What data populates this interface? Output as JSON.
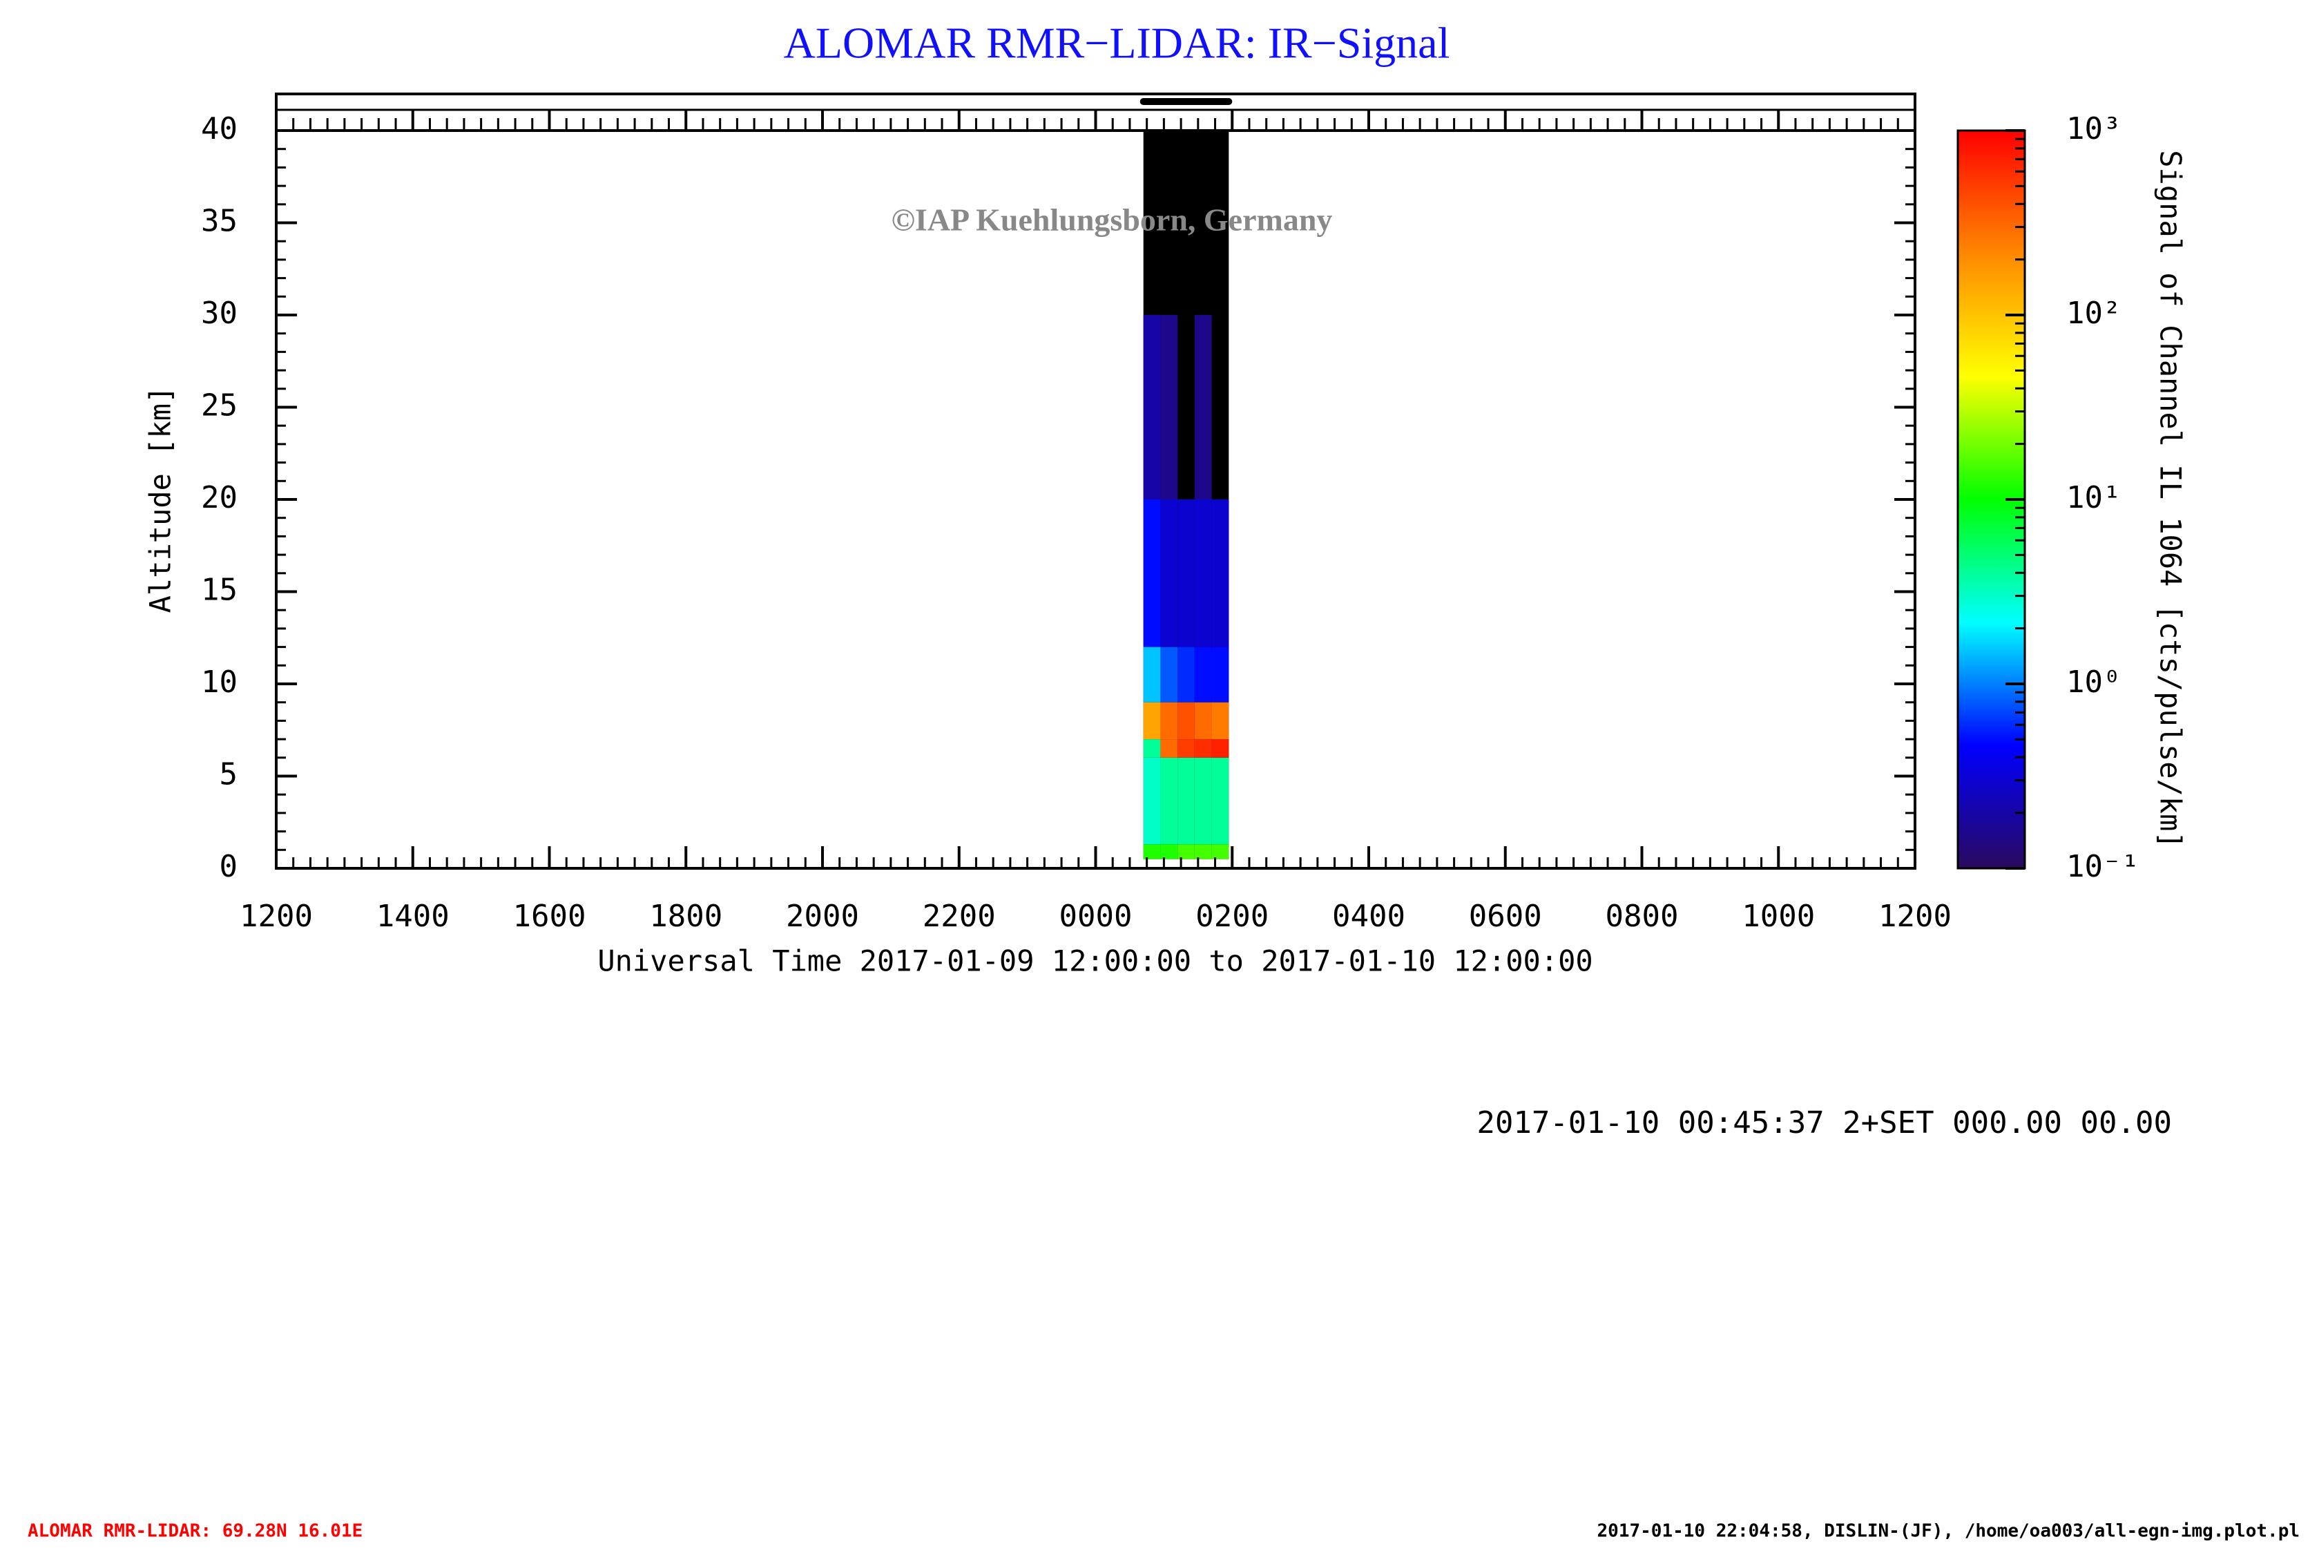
{
  "chart_data": {
    "type": "heatmap",
    "title": "ALOMAR RMR−LIDAR: IR−Signal",
    "watermark": "©IAP Kuehlungsborn, Germany",
    "ylabel": "Altitude [km]",
    "xlabel": "Universal Time 2017-01-09 12:00:00 to 2017-01-10 12:00:00",
    "xlim": [
      0,
      24
    ],
    "ylim": [
      0,
      40
    ],
    "xticks": [
      {
        "value": 0,
        "label": "1200"
      },
      {
        "value": 2,
        "label": "1400"
      },
      {
        "value": 4,
        "label": "1600"
      },
      {
        "value": 6,
        "label": "1800"
      },
      {
        "value": 8,
        "label": "2000"
      },
      {
        "value": 10,
        "label": "2200"
      },
      {
        "value": 12,
        "label": "0000"
      },
      {
        "value": 14,
        "label": "0200"
      },
      {
        "value": 16,
        "label": "0400"
      },
      {
        "value": 18,
        "label": "0600"
      },
      {
        "value": 20,
        "label": "0800"
      },
      {
        "value": 22,
        "label": "1000"
      },
      {
        "value": 24,
        "label": "1200"
      }
    ],
    "yticks": [
      0,
      5,
      10,
      15,
      20,
      25,
      30,
      35,
      40
    ],
    "x_bins": [
      12.7,
      12.95,
      13.2,
      13.45,
      13.7,
      13.95
    ],
    "y_bins": [
      0.5,
      1.3,
      6,
      7,
      9,
      12,
      20,
      30,
      40
    ],
    "values": [
      [
        12,
        12,
        15,
        15,
        15
      ],
      [
        3,
        4,
        4,
        4,
        4
      ],
      [
        4,
        300,
        500,
        600,
        700
      ],
      [
        150,
        300,
        400,
        300,
        250
      ],
      [
        1.5,
        0.8,
        0.6,
        0.5,
        0.5
      ],
      [
        0.5,
        0.3,
        0.3,
        0.3,
        0.3
      ],
      [
        0.2,
        0.15,
        null,
        0.15,
        null
      ],
      [
        null,
        null,
        null,
        null,
        null
      ]
    ],
    "missing_color": "#000000",
    "colormap": [
      "#2a0a5e",
      "#0000ff",
      "#00ffff",
      "#00ff00",
      "#ffff00",
      "#ff8800",
      "#ff0000"
    ],
    "colorbar": {
      "label": "Signal of Channel IL 1064 [cts/pulse/km]",
      "scale": "log",
      "lim": [
        0.1,
        1000
      ],
      "ticks": [
        {
          "value": 0.1,
          "label": "10⁻¹"
        },
        {
          "value": 1,
          "label": "10⁰"
        },
        {
          "value": 10,
          "label": "10¹"
        },
        {
          "value": 100,
          "label": "10²"
        },
        {
          "value": 1000,
          "label": "10³"
        }
      ]
    },
    "info_line": "2017-01-10 00:45:37 2+SET 000.00 00.00",
    "footer_left": "ALOMAR RMR-LIDAR: 69.28N 16.01E",
    "footer_right": "2017-01-10 22:04:58, DISLIN-(JF), /home/oa003/all-egn-img.plot.pl"
  }
}
